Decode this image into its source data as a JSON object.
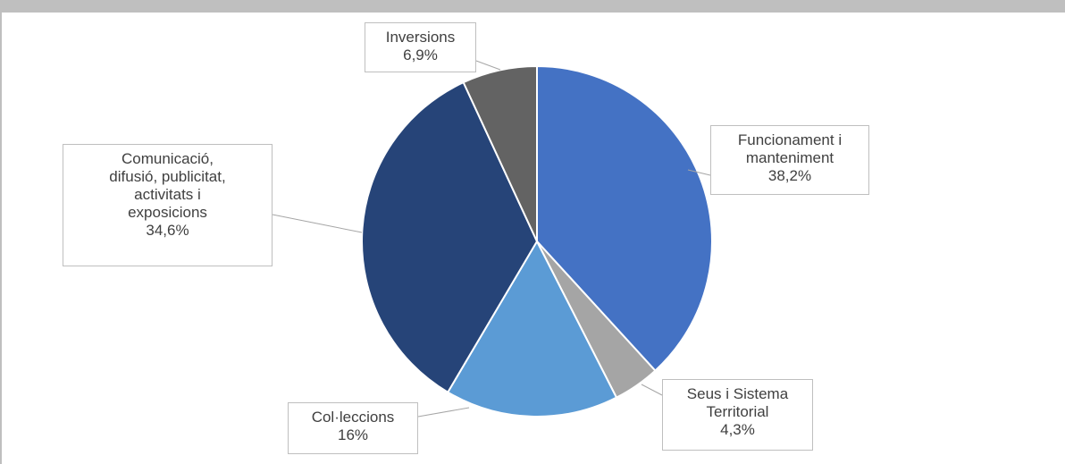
{
  "chart_data": {
    "type": "pie",
    "categories": [
      "Funcionament i manteniment",
      "Seus i Sistema Territorial",
      "Col·leccions",
      "Comunicació, difusió, publicitat, activitats i exposicions",
      "Inversions"
    ],
    "values": [
      38.2,
      4.3,
      16,
      34.6,
      6.9
    ],
    "value_labels": [
      "38,2%",
      "4,3%",
      "16%",
      "34,6%",
      "6,9%"
    ],
    "colors": [
      "#4472c4",
      "#a5a5a5",
      "#5b9bd5",
      "#264478",
      "#636363"
    ]
  }
}
